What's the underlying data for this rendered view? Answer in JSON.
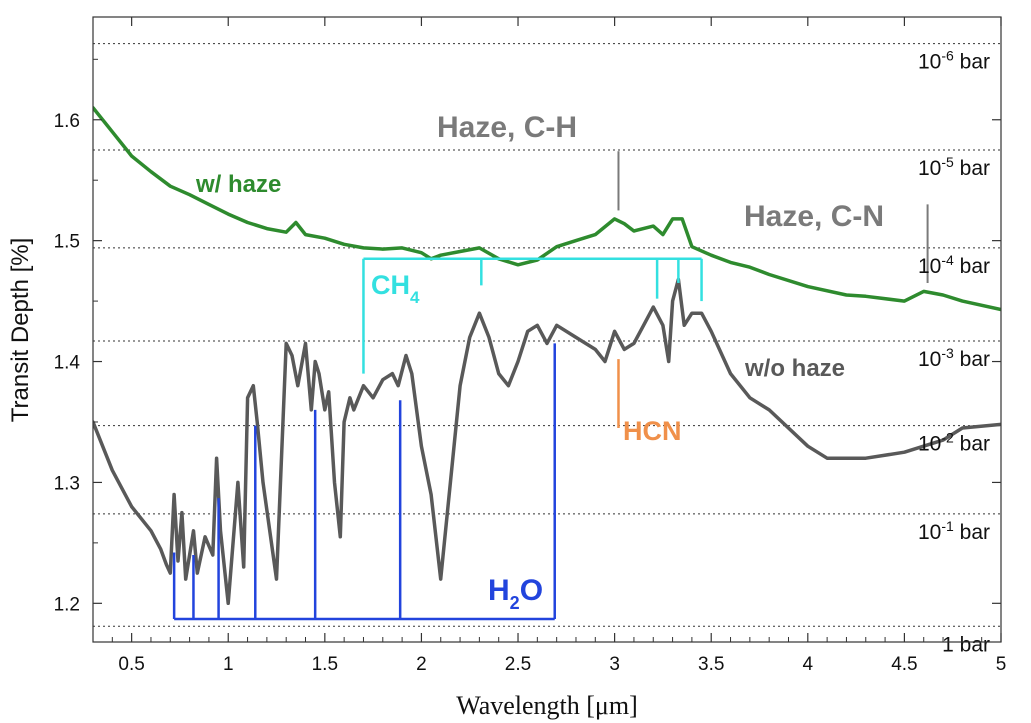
{
  "chart_data": {
    "type": "line",
    "xlabel": "Wavelength [μm]",
    "ylabel": "Transit Depth [%]",
    "xlim": [
      0.3,
      5.0
    ],
    "ylim": [
      1.168,
      1.685
    ],
    "xticks": [
      0.5,
      1,
      1.5,
      2,
      2.5,
      3,
      3.5,
      4,
      4.5,
      5
    ],
    "xtick_labels": [
      "0.5",
      "1",
      "1.5",
      "2",
      "2.5",
      "3",
      "3.5",
      "4",
      "4.5",
      "5"
    ],
    "yticks": [
      1.2,
      1.3,
      1.4,
      1.5,
      1.6
    ],
    "ytick_labels": [
      "1.2",
      "1.3",
      "1.4",
      "1.5",
      "1.6"
    ],
    "grid": false,
    "pressure_levels": [
      {
        "y": 1.663,
        "base": "10",
        "exp": "-6",
        "unit": " bar"
      },
      {
        "y": 1.575,
        "base": "10",
        "exp": "-5",
        "unit": " bar"
      },
      {
        "y": 1.494,
        "base": "10",
        "exp": "-4",
        "unit": " bar"
      },
      {
        "y": 1.417,
        "base": "10",
        "exp": "-3",
        "unit": " bar"
      },
      {
        "y": 1.347,
        "base": "10",
        "exp": "-2",
        "unit": " bar"
      },
      {
        "y": 1.274,
        "base": "10",
        "exp": "-1",
        "unit": " bar"
      },
      {
        "y": 1.181,
        "base": "",
        "exp": "",
        "unit": "1 bar"
      }
    ],
    "series": [
      {
        "name": "w/ haze",
        "color": "#2e8b2e",
        "x": [
          0.3,
          0.4,
          0.5,
          0.6,
          0.7,
          0.8,
          0.9,
          1.0,
          1.1,
          1.2,
          1.3,
          1.35,
          1.4,
          1.5,
          1.6,
          1.7,
          1.8,
          1.9,
          2.0,
          2.05,
          2.1,
          2.2,
          2.3,
          2.4,
          2.5,
          2.6,
          2.7,
          2.8,
          2.9,
          3.0,
          3.05,
          3.1,
          3.2,
          3.25,
          3.3,
          3.35,
          3.4,
          3.5,
          3.6,
          3.7,
          3.8,
          4.0,
          4.2,
          4.3,
          4.5,
          4.6,
          4.7,
          4.8,
          5.0
        ],
        "y": [
          1.61,
          1.59,
          1.57,
          1.557,
          1.545,
          1.538,
          1.53,
          1.522,
          1.515,
          1.51,
          1.507,
          1.515,
          1.505,
          1.502,
          1.497,
          1.494,
          1.493,
          1.494,
          1.49,
          1.485,
          1.488,
          1.491,
          1.494,
          1.485,
          1.48,
          1.484,
          1.495,
          1.5,
          1.505,
          1.518,
          1.514,
          1.508,
          1.512,
          1.505,
          1.518,
          1.518,
          1.495,
          1.488,
          1.482,
          1.478,
          1.472,
          1.462,
          1.455,
          1.454,
          1.45,
          1.458,
          1.455,
          1.45,
          1.443
        ]
      },
      {
        "name": "w/o haze",
        "color": "#595959",
        "x": [
          0.3,
          0.4,
          0.5,
          0.55,
          0.6,
          0.65,
          0.68,
          0.7,
          0.72,
          0.74,
          0.76,
          0.78,
          0.82,
          0.84,
          0.88,
          0.92,
          0.94,
          0.96,
          1.0,
          1.05,
          1.08,
          1.1,
          1.13,
          1.15,
          1.18,
          1.25,
          1.3,
          1.33,
          1.36,
          1.4,
          1.43,
          1.45,
          1.47,
          1.5,
          1.52,
          1.55,
          1.58,
          1.6,
          1.63,
          1.65,
          1.7,
          1.75,
          1.8,
          1.85,
          1.88,
          1.92,
          1.95,
          2.0,
          2.05,
          2.1,
          2.15,
          2.2,
          2.25,
          2.3,
          2.35,
          2.4,
          2.45,
          2.5,
          2.55,
          2.6,
          2.65,
          2.7,
          2.8,
          2.9,
          2.95,
          3.0,
          3.05,
          3.1,
          3.15,
          3.2,
          3.25,
          3.28,
          3.3,
          3.33,
          3.36,
          3.4,
          3.45,
          3.5,
          3.6,
          3.7,
          3.8,
          4.0,
          4.1,
          4.2,
          4.3,
          4.5,
          4.7,
          4.8,
          5.0
        ],
        "y": [
          1.35,
          1.31,
          1.28,
          1.27,
          1.26,
          1.245,
          1.232,
          1.225,
          1.29,
          1.235,
          1.275,
          1.22,
          1.26,
          1.225,
          1.255,
          1.24,
          1.32,
          1.26,
          1.2,
          1.3,
          1.23,
          1.37,
          1.38,
          1.35,
          1.3,
          1.22,
          1.415,
          1.405,
          1.38,
          1.415,
          1.36,
          1.4,
          1.39,
          1.36,
          1.375,
          1.3,
          1.255,
          1.35,
          1.37,
          1.36,
          1.38,
          1.37,
          1.385,
          1.39,
          1.38,
          1.405,
          1.39,
          1.33,
          1.29,
          1.22,
          1.3,
          1.38,
          1.42,
          1.44,
          1.42,
          1.39,
          1.38,
          1.4,
          1.425,
          1.43,
          1.415,
          1.43,
          1.42,
          1.41,
          1.4,
          1.425,
          1.41,
          1.415,
          1.43,
          1.445,
          1.43,
          1.4,
          1.45,
          1.468,
          1.43,
          1.44,
          1.44,
          1.425,
          1.39,
          1.37,
          1.36,
          1.33,
          1.32,
          1.32,
          1.32,
          1.325,
          1.335,
          1.345,
          1.348
        ]
      }
    ],
    "annotations": {
      "w_haze": "w/ haze",
      "wo_haze": "w/o haze",
      "haze_ch": "Haze, C-H",
      "haze_cn": "Haze, C-N",
      "hcn": "HCN",
      "ch4": {
        "main": "CH",
        "sub": "4"
      },
      "h2o": {
        "main": "H",
        "sub": "2",
        "tail": "O"
      }
    },
    "colors": {
      "w_haze": "#2e8b2e",
      "wo_haze": "#595959",
      "ch4": "#33e0e0",
      "h2o": "#2244dd",
      "hcn": "#f0904a",
      "haze_label": "#7a7a7a",
      "gridline": "#333333"
    },
    "markers": {
      "ch4_bar_y": 1.485,
      "ch4_lines": [
        1.7,
        2.31,
        3.22,
        3.33,
        3.45
      ],
      "ch4_bottoms": [
        1.39,
        1.463,
        1.452,
        1.465,
        1.45
      ],
      "h2o_bar_y": 1.187,
      "h2o_lines": [
        0.72,
        0.82,
        0.95,
        1.14,
        1.45,
        1.89,
        2.69
      ],
      "h2o_tops": [
        1.242,
        1.24,
        1.287,
        1.347,
        1.36,
        1.368,
        1.415
      ],
      "hcn_x": 3.02,
      "hcn_range": [
        1.345,
        1.402
      ],
      "haze_ch_x": 3.02,
      "haze_ch_range": [
        1.525,
        1.574
      ],
      "haze_cn_x": 4.62,
      "haze_cn_range": [
        1.465,
        1.53
      ]
    }
  }
}
